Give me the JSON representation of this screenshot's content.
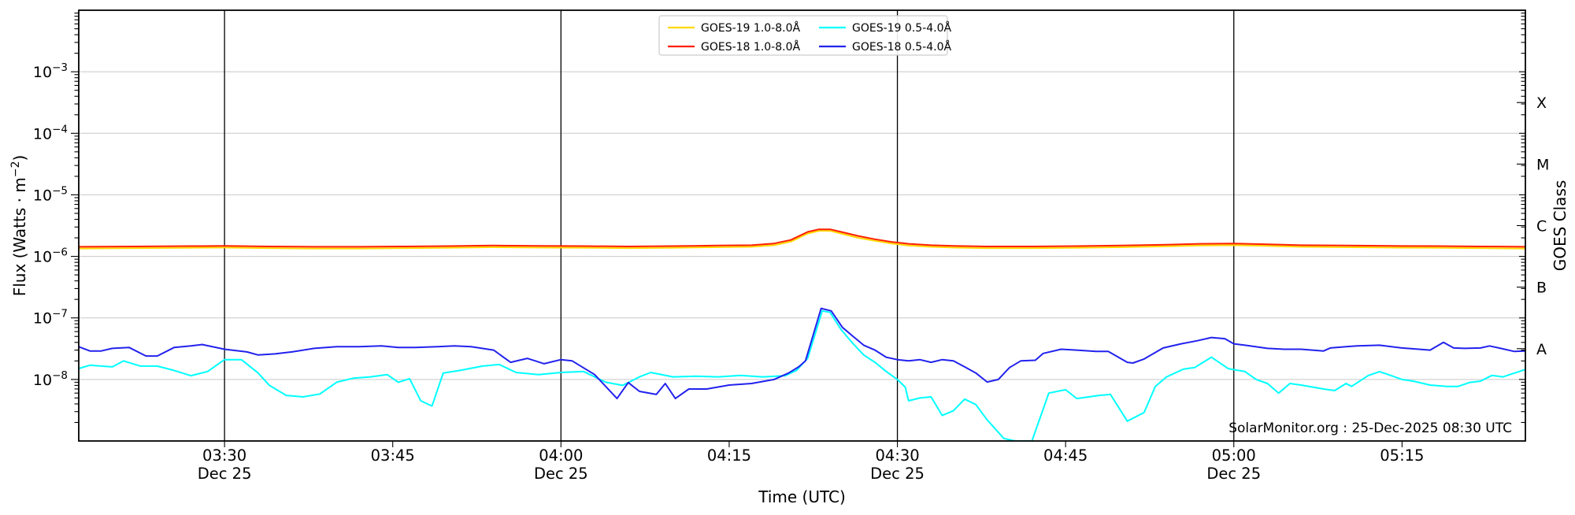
{
  "figure": {
    "background": "#ffffff",
    "annotation": "SolarMonitor.org : 25-Dec-2025 08:30 UTC"
  },
  "chart_data": {
    "type": "line",
    "title": "",
    "xlabel": "Time (UTC)",
    "ylabel_parts": {
      "pre": "Flux (Watts · m",
      "sup": "−2",
      "post": ")"
    },
    "right_axis_label": "GOES Class",
    "x_domain_minutes": [
      17,
      146
    ],
    "x_domain_times": [
      "03:17",
      "05:26"
    ],
    "y_domain_exponents": [
      -9,
      -2
    ],
    "y_grid_exponents": [
      -3,
      -4,
      -5,
      -6,
      -7,
      -8
    ],
    "grid_color": "#c8c8c8",
    "x_ticks": [
      {
        "minute": 30,
        "label": "03:30",
        "day": "Dec 25"
      },
      {
        "minute": 45,
        "label": "03:45",
        "day": ""
      },
      {
        "minute": 60,
        "label": "04:00",
        "day": "Dec 25"
      },
      {
        "minute": 75,
        "label": "04:15",
        "day": ""
      },
      {
        "minute": 90,
        "label": "04:30",
        "day": "Dec 25"
      },
      {
        "minute": 105,
        "label": "04:45",
        "day": ""
      },
      {
        "minute": 120,
        "label": "05:00",
        "day": "Dec 25"
      },
      {
        "minute": 135,
        "label": "05:15",
        "day": ""
      }
    ],
    "vertical_lines_minutes": [
      30,
      60,
      90,
      120
    ],
    "goes_classes": [
      {
        "label": "X",
        "flux": 0.0003162
      },
      {
        "label": "M",
        "flux": 3.162e-05
      },
      {
        "label": "C",
        "flux": 3.162e-06
      },
      {
        "label": "B",
        "flux": 3.162e-07
      },
      {
        "label": "A",
        "flux": 3.162e-08
      }
    ],
    "legend": {
      "position": "upper center",
      "columns": 2,
      "entries": [
        "GOES-19 1.0-8.0Å",
        "GOES-18 1.0-8.0Å",
        "GOES-19 0.5-4.0Å",
        "GOES-18 0.5-4.0Å"
      ]
    },
    "series": [
      {
        "name": "GOES-19 1.0-8.0Å",
        "color": "#ffd700",
        "scale": 1e-06,
        "points": [
          [
            17,
            1.34
          ],
          [
            22,
            1.36
          ],
          [
            27,
            1.38
          ],
          [
            30,
            1.39
          ],
          [
            34,
            1.36
          ],
          [
            38,
            1.34
          ],
          [
            42,
            1.34
          ],
          [
            46,
            1.36
          ],
          [
            50,
            1.38
          ],
          [
            54,
            1.41
          ],
          [
            58,
            1.39
          ],
          [
            62,
            1.38
          ],
          [
            66,
            1.36
          ],
          [
            70,
            1.38
          ],
          [
            74,
            1.41
          ],
          [
            77,
            1.43
          ],
          [
            79,
            1.52
          ],
          [
            80.5,
            1.74
          ],
          [
            82,
            2.35
          ],
          [
            83,
            2.6
          ],
          [
            84,
            2.6
          ],
          [
            85,
            2.35
          ],
          [
            86.5,
            2.0
          ],
          [
            88,
            1.79
          ],
          [
            89.5,
            1.62
          ],
          [
            91,
            1.5
          ],
          [
            93,
            1.43
          ],
          [
            95,
            1.39
          ],
          [
            98,
            1.36
          ],
          [
            102,
            1.36
          ],
          [
            106,
            1.38
          ],
          [
            110,
            1.41
          ],
          [
            114,
            1.46
          ],
          [
            117,
            1.5
          ],
          [
            120,
            1.52
          ],
          [
            123,
            1.48
          ],
          [
            126,
            1.43
          ],
          [
            130,
            1.41
          ],
          [
            134,
            1.39
          ],
          [
            138,
            1.38
          ],
          [
            142,
            1.36
          ],
          [
            146,
            1.34
          ]
        ]
      },
      {
        "name": "GOES-18 1.0-8.0Å",
        "color": "#ff2000",
        "scale": 1e-06,
        "points": [
          [
            17,
            1.43
          ],
          [
            22,
            1.45
          ],
          [
            27,
            1.47
          ],
          [
            30,
            1.48
          ],
          [
            34,
            1.45
          ],
          [
            38,
            1.43
          ],
          [
            42,
            1.43
          ],
          [
            46,
            1.45
          ],
          [
            50,
            1.47
          ],
          [
            54,
            1.5
          ],
          [
            58,
            1.48
          ],
          [
            62,
            1.47
          ],
          [
            66,
            1.45
          ],
          [
            70,
            1.47
          ],
          [
            74,
            1.5
          ],
          [
            77,
            1.52
          ],
          [
            79,
            1.62
          ],
          [
            80.5,
            1.85
          ],
          [
            82,
            2.5
          ],
          [
            83,
            2.75
          ],
          [
            84,
            2.75
          ],
          [
            85,
            2.5
          ],
          [
            86.5,
            2.15
          ],
          [
            88,
            1.9
          ],
          [
            89.5,
            1.72
          ],
          [
            91,
            1.6
          ],
          [
            93,
            1.52
          ],
          [
            95,
            1.48
          ],
          [
            98,
            1.45
          ],
          [
            102,
            1.45
          ],
          [
            106,
            1.47
          ],
          [
            110,
            1.5
          ],
          [
            114,
            1.55
          ],
          [
            117,
            1.6
          ],
          [
            120,
            1.62
          ],
          [
            123,
            1.57
          ],
          [
            126,
            1.52
          ],
          [
            130,
            1.5
          ],
          [
            134,
            1.48
          ],
          [
            138,
            1.47
          ],
          [
            142,
            1.45
          ],
          [
            146,
            1.43
          ]
        ]
      },
      {
        "name": "GOES-19 0.5-4.0Å",
        "color": "#00ffff",
        "scale": 1e-08,
        "points": [
          [
            17,
            1.5
          ],
          [
            18,
            1.7
          ],
          [
            20,
            1.6
          ],
          [
            21,
            2.0
          ],
          [
            22.5,
            1.65
          ],
          [
            24,
            1.65
          ],
          [
            25.5,
            1.4
          ],
          [
            27,
            1.15
          ],
          [
            28.5,
            1.35
          ],
          [
            30,
            2.1
          ],
          [
            31.5,
            2.1
          ],
          [
            33,
            1.27
          ],
          [
            34,
            0.8
          ],
          [
            35.5,
            0.55
          ],
          [
            37,
            0.52
          ],
          [
            38.5,
            0.58
          ],
          [
            40,
            0.9
          ],
          [
            41.5,
            1.05
          ],
          [
            43,
            1.1
          ],
          [
            44.5,
            1.2
          ],
          [
            45.5,
            0.9
          ],
          [
            46.5,
            1.03
          ],
          [
            47.5,
            0.45
          ],
          [
            48.5,
            0.37
          ],
          [
            49.5,
            1.27
          ],
          [
            51,
            1.4
          ],
          [
            53,
            1.65
          ],
          [
            54.5,
            1.75
          ],
          [
            56,
            1.3
          ],
          [
            58,
            1.2
          ],
          [
            60,
            1.3
          ],
          [
            62,
            1.35
          ],
          [
            64,
            0.9
          ],
          [
            65.5,
            0.8
          ],
          [
            67,
            1.1
          ],
          [
            68,
            1.3
          ],
          [
            70,
            1.1
          ],
          [
            72,
            1.13
          ],
          [
            74,
            1.1
          ],
          [
            76,
            1.16
          ],
          [
            78,
            1.1
          ],
          [
            80,
            1.15
          ],
          [
            81,
            1.4
          ],
          [
            82,
            2.2
          ],
          [
            83.3,
            13.0
          ],
          [
            84,
            12.3
          ],
          [
            85,
            6.4
          ],
          [
            86,
            3.9
          ],
          [
            87,
            2.5
          ],
          [
            88,
            1.9
          ],
          [
            89,
            1.35
          ],
          [
            90,
            1.0
          ],
          [
            90.7,
            0.75
          ],
          [
            91,
            0.45
          ],
          [
            92,
            0.5
          ],
          [
            93,
            0.52
          ],
          [
            94,
            0.26
          ],
          [
            95,
            0.31
          ],
          [
            96,
            0.48
          ],
          [
            97,
            0.39
          ],
          [
            98,
            0.22
          ],
          [
            99.5,
            0.11
          ],
          [
            100.5,
            0.1
          ],
          [
            102,
            0.1
          ],
          [
            103.5,
            0.6
          ],
          [
            105,
            0.68
          ],
          [
            106,
            0.49
          ],
          [
            108,
            0.55
          ],
          [
            109,
            0.57
          ],
          [
            110.5,
            0.21
          ],
          [
            112,
            0.29
          ],
          [
            113,
            0.77
          ],
          [
            114,
            1.1
          ],
          [
            115.5,
            1.47
          ],
          [
            116.5,
            1.56
          ],
          [
            118,
            2.3
          ],
          [
            119.5,
            1.5
          ],
          [
            121,
            1.34
          ],
          [
            122,
            1.0
          ],
          [
            123,
            0.86
          ],
          [
            124,
            0.6
          ],
          [
            125,
            0.86
          ],
          [
            126,
            0.81
          ],
          [
            128,
            0.7
          ],
          [
            129,
            0.66
          ],
          [
            130,
            0.86
          ],
          [
            130.5,
            0.77
          ],
          [
            132,
            1.16
          ],
          [
            133,
            1.34
          ],
          [
            134,
            1.16
          ],
          [
            135,
            1.0
          ],
          [
            136,
            0.94
          ],
          [
            137.5,
            0.81
          ],
          [
            139,
            0.77
          ],
          [
            140,
            0.77
          ],
          [
            141,
            0.89
          ],
          [
            142,
            0.94
          ],
          [
            143,
            1.16
          ],
          [
            144,
            1.1
          ],
          [
            146,
            1.45
          ]
        ]
      },
      {
        "name": "GOES-18 0.5-4.0Å",
        "color": "#2222ee",
        "scale": 1e-08,
        "points": [
          [
            17,
            3.4
          ],
          [
            18,
            2.9
          ],
          [
            19,
            2.9
          ],
          [
            20,
            3.2
          ],
          [
            21.5,
            3.3
          ],
          [
            23,
            2.4
          ],
          [
            24,
            2.4
          ],
          [
            25.5,
            3.3
          ],
          [
            27,
            3.5
          ],
          [
            28,
            3.7
          ],
          [
            30,
            3.1
          ],
          [
            32,
            2.8
          ],
          [
            33,
            2.5
          ],
          [
            34.5,
            2.6
          ],
          [
            36,
            2.8
          ],
          [
            38,
            3.2
          ],
          [
            40,
            3.4
          ],
          [
            42,
            3.4
          ],
          [
            44,
            3.5
          ],
          [
            45.5,
            3.3
          ],
          [
            47,
            3.3
          ],
          [
            49,
            3.4
          ],
          [
            50.5,
            3.5
          ],
          [
            52,
            3.4
          ],
          [
            54,
            3.0
          ],
          [
            55.5,
            1.9
          ],
          [
            57,
            2.2
          ],
          [
            58.5,
            1.8
          ],
          [
            60,
            2.1
          ],
          [
            61,
            2.0
          ],
          [
            63,
            1.2
          ],
          [
            65,
            0.49
          ],
          [
            66,
            0.89
          ],
          [
            67,
            0.64
          ],
          [
            68.5,
            0.57
          ],
          [
            69.3,
            0.86
          ],
          [
            70.2,
            0.49
          ],
          [
            71.4,
            0.7
          ],
          [
            73,
            0.7
          ],
          [
            75,
            0.81
          ],
          [
            77,
            0.86
          ],
          [
            79,
            1.0
          ],
          [
            80.3,
            1.27
          ],
          [
            81.2,
            1.6
          ],
          [
            81.8,
            2.0
          ],
          [
            83.2,
            14.3
          ],
          [
            84.1,
            13.0
          ],
          [
            85.1,
            7.0
          ],
          [
            86,
            5.1
          ],
          [
            87,
            3.6
          ],
          [
            88,
            3.0
          ],
          [
            89,
            2.3
          ],
          [
            90,
            2.1
          ],
          [
            91,
            2.0
          ],
          [
            92,
            2.1
          ],
          [
            93,
            1.9
          ],
          [
            94,
            2.1
          ],
          [
            95,
            2.0
          ],
          [
            96,
            1.6
          ],
          [
            97,
            1.27
          ],
          [
            98,
            0.91
          ],
          [
            99,
            1.0
          ],
          [
            100,
            1.56
          ],
          [
            101,
            2.0
          ],
          [
            102.3,
            2.05
          ],
          [
            103,
            2.65
          ],
          [
            104.6,
            3.1
          ],
          [
            106,
            3.0
          ],
          [
            107.7,
            2.85
          ],
          [
            108.8,
            2.85
          ],
          [
            110.5,
            1.9
          ],
          [
            111,
            1.85
          ],
          [
            112,
            2.15
          ],
          [
            113.7,
            3.25
          ],
          [
            115.3,
            3.8
          ],
          [
            116.7,
            4.25
          ],
          [
            118,
            4.8
          ],
          [
            119.2,
            4.6
          ],
          [
            120,
            3.8
          ],
          [
            121,
            3.6
          ],
          [
            123,
            3.2
          ],
          [
            124.5,
            3.1
          ],
          [
            126,
            3.1
          ],
          [
            128,
            2.9
          ],
          [
            128.6,
            3.25
          ],
          [
            130,
            3.4
          ],
          [
            131,
            3.5
          ],
          [
            133,
            3.6
          ],
          [
            135,
            3.25
          ],
          [
            136.5,
            3.1
          ],
          [
            137.5,
            3.0
          ],
          [
            138.7,
            4.0
          ],
          [
            139.6,
            3.25
          ],
          [
            140.6,
            3.2
          ],
          [
            142,
            3.25
          ],
          [
            142.8,
            3.5
          ],
          [
            143.8,
            3.2
          ],
          [
            145,
            2.85
          ],
          [
            146,
            2.9
          ]
        ]
      }
    ],
    "annotation": "SolarMonitor.org : 25-Dec-2025 08:30 UTC"
  }
}
